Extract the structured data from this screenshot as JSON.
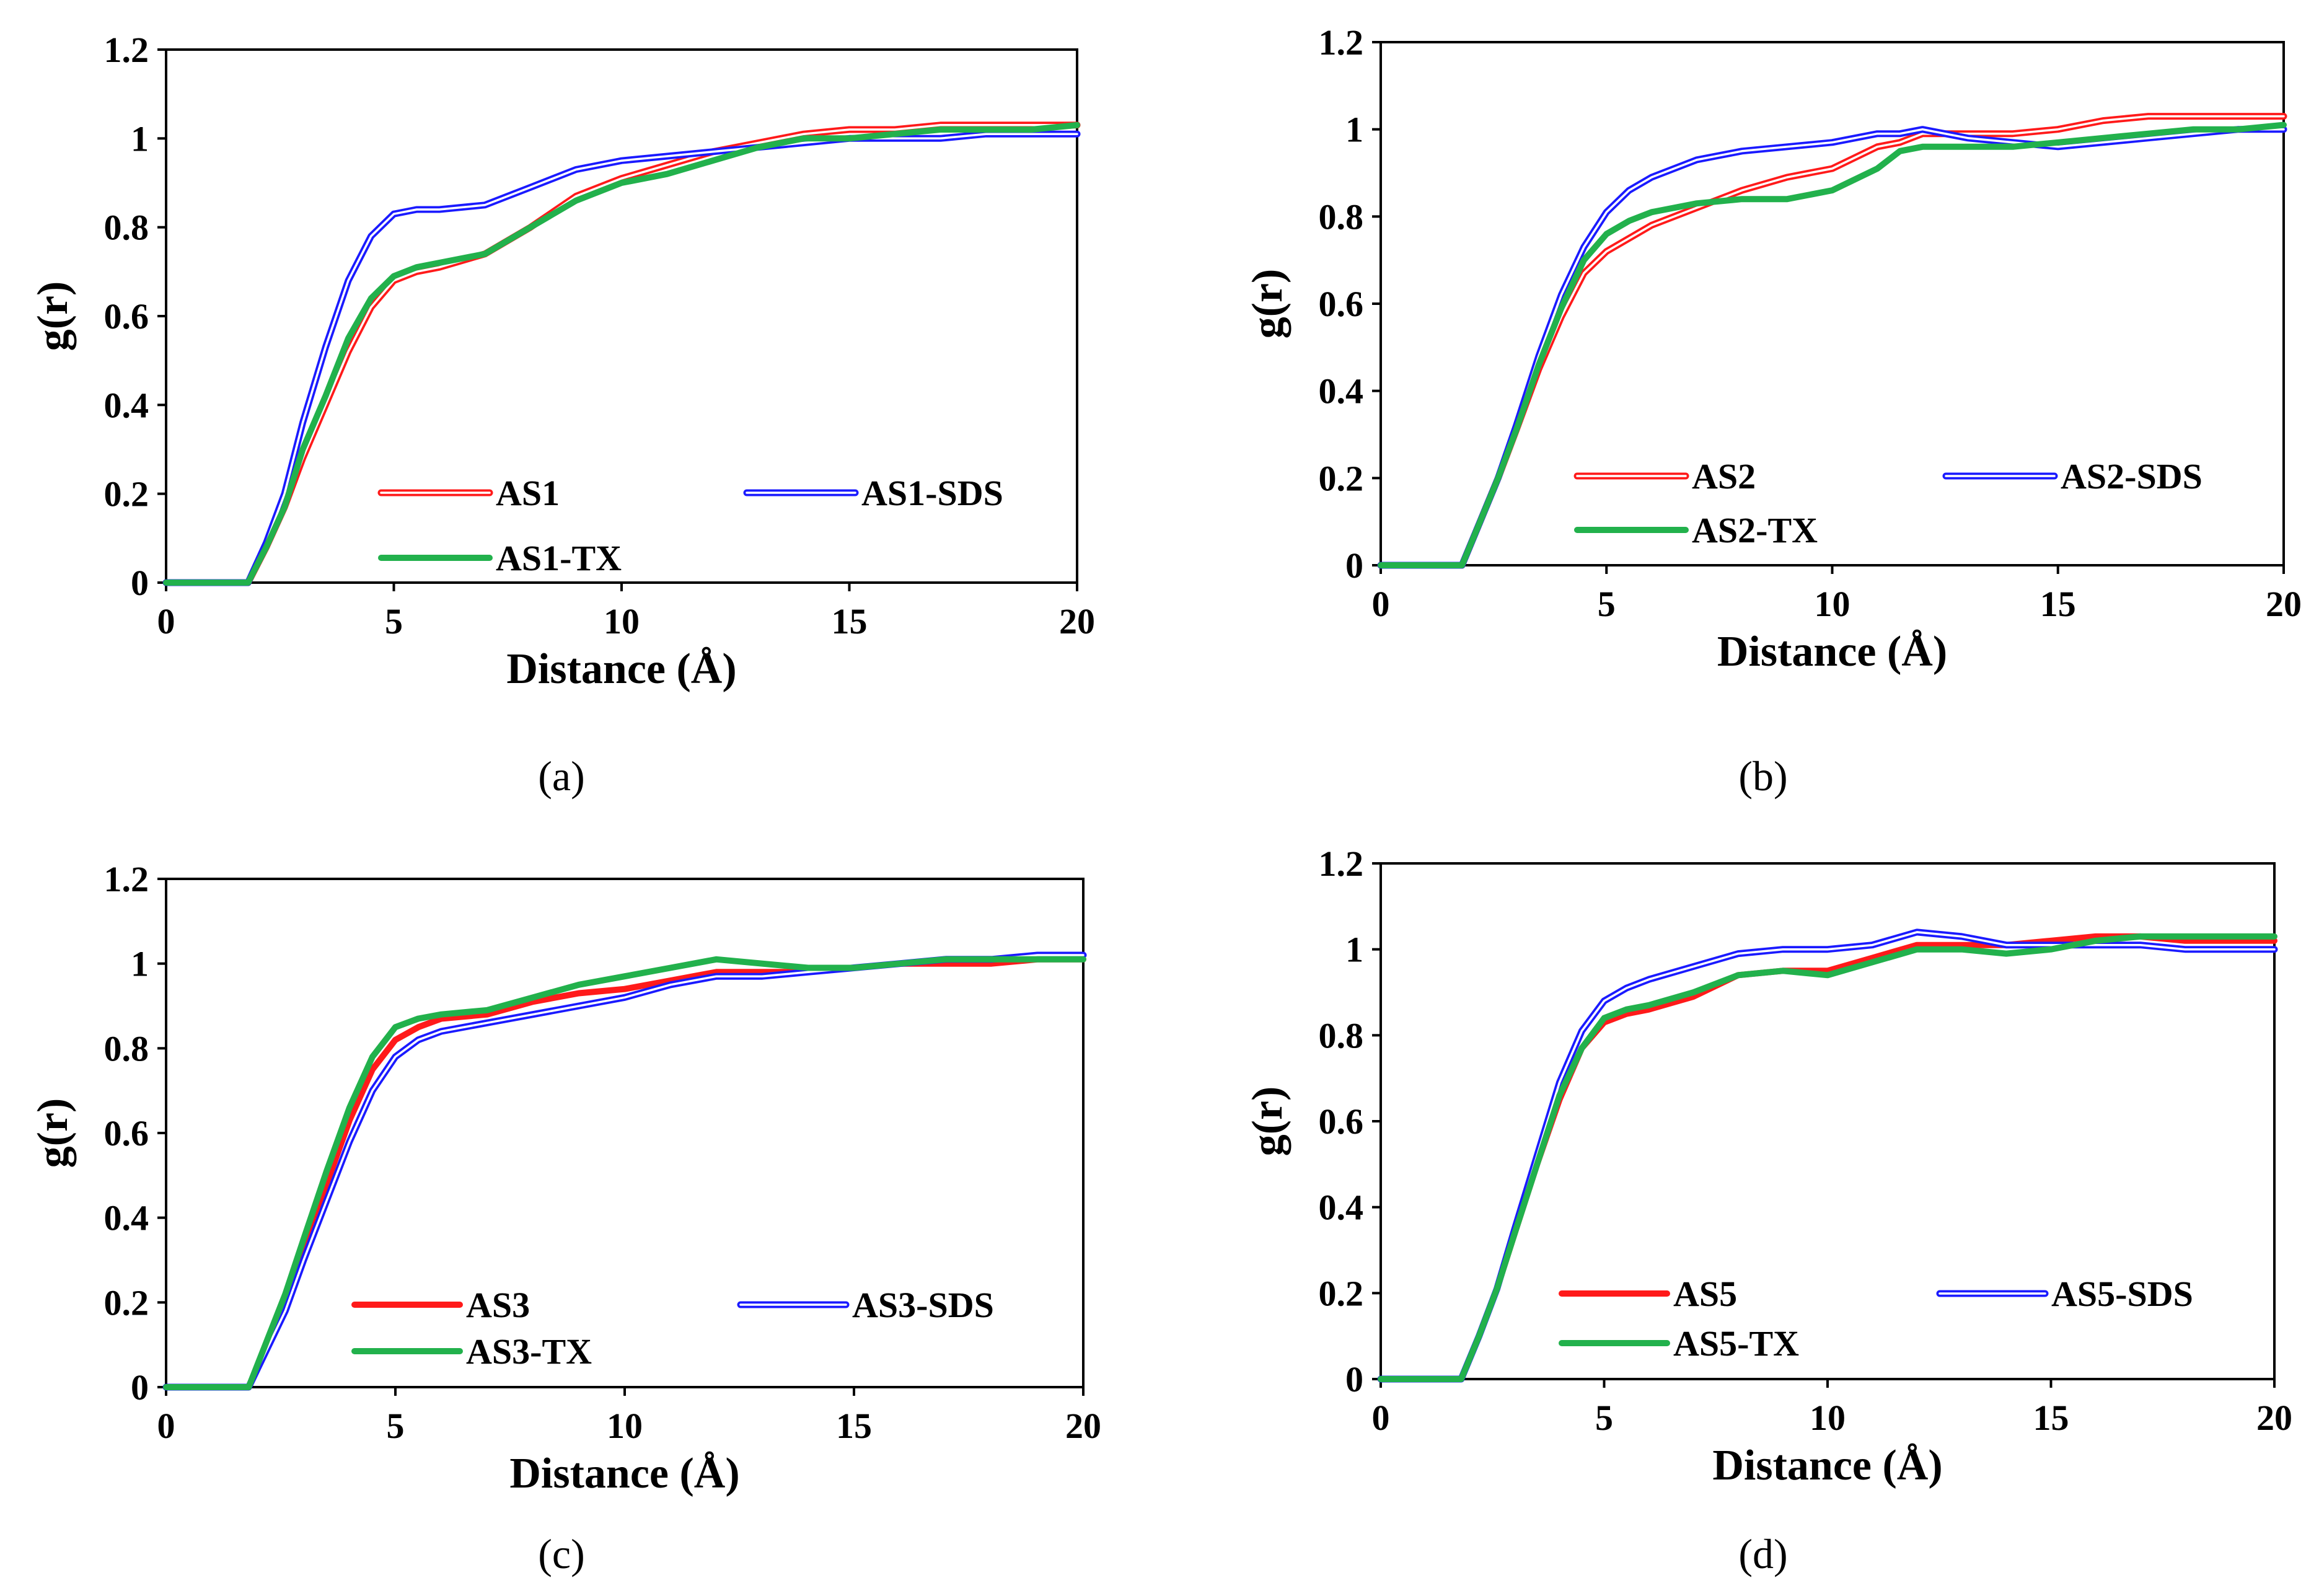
{
  "colors": {
    "red": "#ff1a1a",
    "blue": "#1a1aff",
    "green": "#22b14c",
    "axis": "#000000"
  },
  "chart_data": [
    {
      "type": "line",
      "caption": "(a)",
      "xlabel": "Distance (Å)",
      "ylabel": "g(r)",
      "xlim": [
        0,
        20
      ],
      "ylim": [
        0,
        1.2
      ],
      "xticks": [
        "0",
        "5",
        "10",
        "15",
        "20"
      ],
      "yticks": [
        "0",
        "0.2",
        "0.4",
        "0.6",
        "0.8",
        "1",
        "1.2"
      ],
      "grid": false,
      "series": [
        {
          "name": "AS1",
          "color": "red",
          "style": "double",
          "x": [
            0,
            1.8,
            2.2,
            2.6,
            3.0,
            3.5,
            4.0,
            4.5,
            5.0,
            5.5,
            6.0,
            7.0,
            8.0,
            9.0,
            10.0,
            11.0,
            12.0,
            13.0,
            14.0,
            15.0,
            16.0,
            17.0,
            18.0,
            19.0,
            20.0
          ],
          "y": [
            0,
            0,
            0.08,
            0.17,
            0.28,
            0.4,
            0.52,
            0.62,
            0.68,
            0.7,
            0.71,
            0.74,
            0.8,
            0.87,
            0.91,
            0.94,
            0.97,
            0.99,
            1.01,
            1.02,
            1.02,
            1.03,
            1.03,
            1.03,
            1.03
          ]
        },
        {
          "name": "AS1-SDS",
          "color": "blue",
          "style": "double",
          "x": [
            0,
            1.8,
            2.2,
            2.6,
            3.0,
            3.5,
            4.0,
            4.5,
            5.0,
            5.5,
            6.0,
            7.0,
            8.0,
            9.0,
            10.0,
            11.0,
            12.0,
            13.0,
            14.0,
            15.0,
            16.0,
            17.0,
            18.0,
            19.0,
            20.0
          ],
          "y": [
            0,
            0,
            0.09,
            0.2,
            0.36,
            0.53,
            0.68,
            0.78,
            0.83,
            0.84,
            0.84,
            0.85,
            0.89,
            0.93,
            0.95,
            0.96,
            0.97,
            0.98,
            0.99,
            1.0,
            1.0,
            1.0,
            1.01,
            1.01,
            1.01
          ]
        },
        {
          "name": "AS1-TX",
          "color": "green",
          "style": "solid",
          "x": [
            0,
            1.8,
            2.2,
            2.6,
            3.0,
            3.5,
            4.0,
            4.5,
            5.0,
            5.5,
            6.0,
            7.0,
            8.0,
            9.0,
            10.0,
            11.0,
            12.0,
            13.0,
            14.0,
            15.0,
            16.0,
            17.0,
            18.0,
            19.0,
            20.0
          ],
          "y": [
            0,
            0,
            0.08,
            0.17,
            0.3,
            0.42,
            0.55,
            0.64,
            0.69,
            0.71,
            0.72,
            0.74,
            0.8,
            0.86,
            0.9,
            0.92,
            0.95,
            0.98,
            1.0,
            1.0,
            1.01,
            1.02,
            1.02,
            1.02,
            1.03
          ]
        }
      ]
    },
    {
      "type": "line",
      "caption": "(b)",
      "xlabel": "Distance (Å)",
      "ylabel": "g(r)",
      "xlim": [
        0,
        20
      ],
      "ylim": [
        0,
        1.2
      ],
      "xticks": [
        "0",
        "5",
        "10",
        "15",
        "20"
      ],
      "yticks": [
        "0",
        "0.2",
        "0.4",
        "0.6",
        "0.8",
        "1",
        "1.2"
      ],
      "grid": false,
      "series": [
        {
          "name": "AS2",
          "color": "red",
          "style": "double",
          "x": [
            0,
            1.8,
            2.2,
            2.6,
            3.0,
            3.5,
            4.0,
            4.5,
            5.0,
            5.5,
            6.0,
            7.0,
            8.0,
            9.0,
            10.0,
            11.0,
            11.5,
            12.0,
            13.0,
            14.0,
            15.0,
            16.0,
            17.0,
            18.0,
            19.0,
            20.0
          ],
          "y": [
            0,
            0,
            0.1,
            0.2,
            0.31,
            0.45,
            0.57,
            0.67,
            0.72,
            0.75,
            0.78,
            0.82,
            0.86,
            0.89,
            0.91,
            0.96,
            0.97,
            0.99,
            0.99,
            0.99,
            1.0,
            1.02,
            1.03,
            1.03,
            1.03,
            1.03
          ]
        },
        {
          "name": "AS2-SDS",
          "color": "blue",
          "style": "double",
          "x": [
            0,
            1.8,
            2.2,
            2.6,
            3.0,
            3.5,
            4.0,
            4.5,
            5.0,
            5.5,
            6.0,
            7.0,
            8.0,
            9.0,
            10.0,
            11.0,
            11.5,
            12.0,
            13.0,
            14.0,
            15.0,
            16.0,
            17.0,
            18.0,
            19.0,
            20.0
          ],
          "y": [
            0,
            0,
            0.1,
            0.2,
            0.32,
            0.48,
            0.62,
            0.73,
            0.81,
            0.86,
            0.89,
            0.93,
            0.95,
            0.96,
            0.97,
            0.99,
            0.99,
            1.0,
            0.98,
            0.97,
            0.96,
            0.97,
            0.98,
            0.99,
            1.0,
            1.0
          ]
        },
        {
          "name": "AS2-TX",
          "color": "green",
          "style": "solid",
          "x": [
            0,
            1.8,
            2.2,
            2.6,
            3.0,
            3.5,
            4.0,
            4.5,
            5.0,
            5.5,
            6.0,
            7.0,
            8.0,
            9.0,
            10.0,
            11.0,
            11.5,
            12.0,
            13.0,
            14.0,
            15.0,
            16.0,
            17.0,
            18.0,
            19.0,
            20.0
          ],
          "y": [
            0,
            0,
            0.1,
            0.2,
            0.31,
            0.46,
            0.59,
            0.7,
            0.76,
            0.79,
            0.81,
            0.83,
            0.84,
            0.84,
            0.86,
            0.91,
            0.95,
            0.96,
            0.96,
            0.96,
            0.97,
            0.98,
            0.99,
            1.0,
            1.0,
            1.01
          ]
        }
      ]
    },
    {
      "type": "line",
      "caption": "(c)",
      "xlabel": "Distance (Å)",
      "ylabel": "g(r)",
      "xlim": [
        0,
        20
      ],
      "ylim": [
        0,
        1.2
      ],
      "xticks": [
        "0",
        "5",
        "10",
        "15",
        "20"
      ],
      "yticks": [
        "0",
        "0.2",
        "0.4",
        "0.6",
        "0.8",
        "1",
        "1.2"
      ],
      "grid": false,
      "series": [
        {
          "name": "AS3",
          "color": "red",
          "style": "solid",
          "x": [
            0,
            1.8,
            2.2,
            2.6,
            3.0,
            3.5,
            4.0,
            4.5,
            5.0,
            5.5,
            6.0,
            7.0,
            8.0,
            9.0,
            10.0,
            11.0,
            12.0,
            13.0,
            14.0,
            15.0,
            16.0,
            17.0,
            18.0,
            19.0,
            20.0
          ],
          "y": [
            0,
            0,
            0.1,
            0.2,
            0.33,
            0.48,
            0.63,
            0.75,
            0.82,
            0.85,
            0.87,
            0.88,
            0.91,
            0.93,
            0.94,
            0.96,
            0.98,
            0.98,
            0.98,
            0.99,
            1.0,
            1.0,
            1.0,
            1.01,
            1.01
          ]
        },
        {
          "name": "AS3-SDS",
          "color": "blue",
          "style": "double",
          "x": [
            0,
            1.8,
            2.2,
            2.6,
            3.0,
            3.5,
            4.0,
            4.5,
            5.0,
            5.5,
            6.0,
            7.0,
            8.0,
            9.0,
            10.0,
            11.0,
            12.0,
            13.0,
            14.0,
            15.0,
            16.0,
            17.0,
            18.0,
            19.0,
            20.0
          ],
          "y": [
            0,
            0,
            0.09,
            0.18,
            0.3,
            0.44,
            0.58,
            0.7,
            0.78,
            0.82,
            0.84,
            0.86,
            0.88,
            0.9,
            0.92,
            0.95,
            0.97,
            0.97,
            0.98,
            0.99,
            1.0,
            1.01,
            1.01,
            1.02,
            1.02
          ]
        },
        {
          "name": "AS3-TX",
          "color": "green",
          "style": "solid",
          "x": [
            0,
            1.8,
            2.2,
            2.6,
            3.0,
            3.5,
            4.0,
            4.5,
            5.0,
            5.5,
            6.0,
            7.0,
            8.0,
            9.0,
            10.0,
            11.0,
            12.0,
            13.0,
            14.0,
            15.0,
            16.0,
            17.0,
            18.0,
            19.0,
            20.0
          ],
          "y": [
            0,
            0,
            0.11,
            0.22,
            0.35,
            0.51,
            0.66,
            0.78,
            0.85,
            0.87,
            0.88,
            0.89,
            0.92,
            0.95,
            0.97,
            0.99,
            1.01,
            1.0,
            0.99,
            0.99,
            1.0,
            1.01,
            1.01,
            1.01,
            1.01
          ]
        }
      ]
    },
    {
      "type": "line",
      "caption": "(d)",
      "xlabel": "Distance (Å)",
      "ylabel": "g(r)",
      "xlim": [
        0,
        20
      ],
      "ylim": [
        0,
        1.2
      ],
      "xticks": [
        "0",
        "5",
        "10",
        "15",
        "20"
      ],
      "yticks": [
        "0",
        "0.2",
        "0.4",
        "0.6",
        "0.8",
        "1",
        "1.2"
      ],
      "grid": false,
      "series": [
        {
          "name": "AS5",
          "color": "red",
          "style": "solid",
          "x": [
            0,
            1.8,
            2.2,
            2.6,
            3.0,
            3.5,
            4.0,
            4.5,
            5.0,
            5.5,
            6.0,
            7.0,
            8.0,
            9.0,
            10.0,
            11.0,
            12.0,
            13.0,
            14.0,
            15.0,
            16.0,
            17.0,
            18.0,
            19.0,
            20.0
          ],
          "y": [
            0,
            0,
            0.1,
            0.21,
            0.34,
            0.5,
            0.65,
            0.77,
            0.83,
            0.85,
            0.86,
            0.89,
            0.94,
            0.95,
            0.95,
            0.98,
            1.01,
            1.01,
            1.01,
            1.02,
            1.03,
            1.03,
            1.02,
            1.02,
            1.02
          ]
        },
        {
          "name": "AS5-SDS",
          "color": "blue",
          "style": "double",
          "x": [
            0,
            1.8,
            2.2,
            2.6,
            3.0,
            3.5,
            4.0,
            4.5,
            5.0,
            5.5,
            6.0,
            7.0,
            8.0,
            9.0,
            10.0,
            11.0,
            12.0,
            13.0,
            14.0,
            15.0,
            16.0,
            17.0,
            18.0,
            19.0,
            20.0
          ],
          "y": [
            0,
            0,
            0.1,
            0.21,
            0.35,
            0.52,
            0.69,
            0.81,
            0.88,
            0.91,
            0.93,
            0.96,
            0.99,
            1.0,
            1.0,
            1.01,
            1.04,
            1.03,
            1.01,
            1.01,
            1.01,
            1.01,
            1.0,
            1.0,
            1.0
          ]
        },
        {
          "name": "AS5-TX",
          "color": "green",
          "style": "solid",
          "x": [
            0,
            1.8,
            2.2,
            2.6,
            3.0,
            3.5,
            4.0,
            4.5,
            5.0,
            5.5,
            6.0,
            7.0,
            8.0,
            9.0,
            10.0,
            11.0,
            12.0,
            13.0,
            14.0,
            15.0,
            16.0,
            17.0,
            18.0,
            19.0,
            20.0
          ],
          "y": [
            0,
            0,
            0.1,
            0.21,
            0.34,
            0.5,
            0.66,
            0.77,
            0.84,
            0.86,
            0.87,
            0.9,
            0.94,
            0.95,
            0.94,
            0.97,
            1.0,
            1.0,
            0.99,
            1.0,
            1.02,
            1.03,
            1.03,
            1.03,
            1.03
          ]
        }
      ]
    }
  ]
}
